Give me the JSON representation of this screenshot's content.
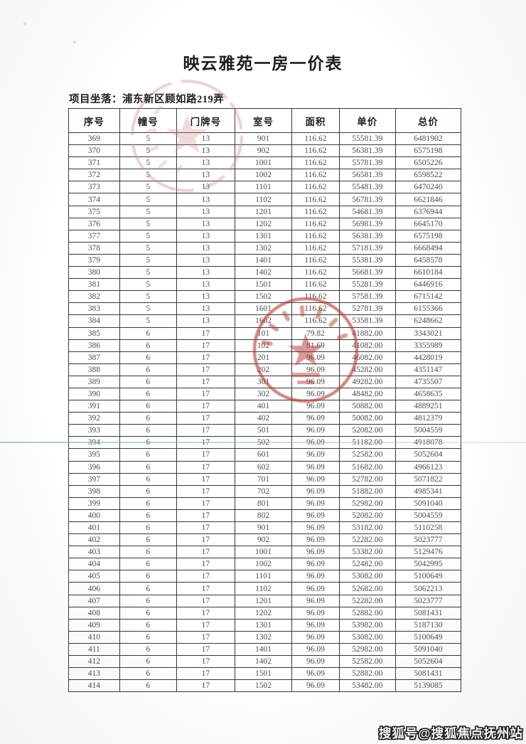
{
  "page": {
    "title": "映云雅苑一房一价表",
    "location_label": "项目坐落：",
    "location_value": "浦东新区顾如路219弄"
  },
  "table": {
    "headers": [
      "序号",
      "幢号",
      "门牌号",
      "室号",
      "面积",
      "单价",
      "总价"
    ],
    "rows": [
      [
        "369",
        "5",
        "13",
        "901",
        "116.62",
        "55581.39",
        "6481902"
      ],
      [
        "370",
        "5",
        "13",
        "902",
        "116.62",
        "56381.39",
        "6575198"
      ],
      [
        "371",
        "5",
        "13",
        "1001",
        "116.62",
        "55781.39",
        "6505226"
      ],
      [
        "372",
        "5",
        "13",
        "1002",
        "116.62",
        "56581.39",
        "6598522"
      ],
      [
        "373",
        "5",
        "13",
        "1101",
        "116.62",
        "55481.39",
        "6470240"
      ],
      [
        "374",
        "5",
        "13",
        "1102",
        "116.62",
        "56781.39",
        "6621846"
      ],
      [
        "375",
        "5",
        "13",
        "1201",
        "116.62",
        "54681.39",
        "6376944"
      ],
      [
        "376",
        "5",
        "13",
        "1202",
        "116.62",
        "56981.39",
        "6645170"
      ],
      [
        "377",
        "5",
        "13",
        "1301",
        "116.62",
        "56381.39",
        "6575198"
      ],
      [
        "378",
        "5",
        "13",
        "1302",
        "116.62",
        "57181.39",
        "6668494"
      ],
      [
        "379",
        "5",
        "13",
        "1401",
        "116.62",
        "55381.39",
        "6458578"
      ],
      [
        "380",
        "5",
        "13",
        "1402",
        "116.62",
        "56681.39",
        "6610184"
      ],
      [
        "381",
        "5",
        "13",
        "1501",
        "116.62",
        "55281.39",
        "6446916"
      ],
      [
        "382",
        "5",
        "13",
        "1502",
        "116.62",
        "57581.39",
        "6715142"
      ],
      [
        "383",
        "5",
        "13",
        "1601",
        "116.62",
        "52781.39",
        "6155366"
      ],
      [
        "384",
        "5",
        "13",
        "1602",
        "116.62",
        "53581.39",
        "6248662"
      ],
      [
        "385",
        "6",
        "17",
        "101",
        "79.82",
        "41882.00",
        "3343021"
      ],
      [
        "386",
        "6",
        "17",
        "102",
        "81.69",
        "41082.00",
        "3355989"
      ],
      [
        "387",
        "6",
        "17",
        "201",
        "96.09",
        "46082.00",
        "4428019"
      ],
      [
        "388",
        "6",
        "17",
        "202",
        "96.09",
        "45282.00",
        "4351147"
      ],
      [
        "389",
        "6",
        "17",
        "301",
        "96.09",
        "49282.00",
        "4735507"
      ],
      [
        "390",
        "6",
        "17",
        "302",
        "96.09",
        "48482.00",
        "4658635"
      ],
      [
        "391",
        "6",
        "17",
        "401",
        "96.09",
        "50882.00",
        "4889251"
      ],
      [
        "392",
        "6",
        "17",
        "402",
        "96.09",
        "50082.00",
        "4812379"
      ],
      [
        "393",
        "6",
        "17",
        "501",
        "96.09",
        "52082.00",
        "5004559"
      ],
      [
        "394",
        "6",
        "17",
        "502",
        "96.09",
        "51182.00",
        "4918078"
      ],
      [
        "395",
        "6",
        "17",
        "601",
        "96.09",
        "52582.00",
        "5052604"
      ],
      [
        "396",
        "6",
        "17",
        "602",
        "96.09",
        "51682.00",
        "4966123"
      ],
      [
        "397",
        "6",
        "17",
        "701",
        "96.09",
        "52782.00",
        "5071822"
      ],
      [
        "398",
        "6",
        "17",
        "702",
        "96.09",
        "51882.00",
        "4985341"
      ],
      [
        "399",
        "6",
        "17",
        "801",
        "96.09",
        "52982.00",
        "5091040"
      ],
      [
        "400",
        "6",
        "17",
        "802",
        "96.09",
        "52082.00",
        "5004559"
      ],
      [
        "401",
        "6",
        "17",
        "901",
        "96.09",
        "53182.00",
        "5110258"
      ],
      [
        "402",
        "6",
        "17",
        "902",
        "96.09",
        "52282.00",
        "5023777"
      ],
      [
        "403",
        "6",
        "17",
        "1001",
        "96.09",
        "53382.00",
        "5129476"
      ],
      [
        "404",
        "6",
        "17",
        "1002",
        "96.09",
        "52482.00",
        "5042995"
      ],
      [
        "405",
        "6",
        "17",
        "1101",
        "96.09",
        "53082.00",
        "5100649"
      ],
      [
        "406",
        "6",
        "17",
        "1102",
        "96.09",
        "52682.00",
        "5062213"
      ],
      [
        "407",
        "6",
        "17",
        "1201",
        "96.09",
        "52282.00",
        "5023777"
      ],
      [
        "408",
        "6",
        "17",
        "1202",
        "96.09",
        "52882.00",
        "5081431"
      ],
      [
        "409",
        "6",
        "17",
        "1301",
        "96.09",
        "53982.00",
        "5187130"
      ],
      [
        "410",
        "6",
        "17",
        "1302",
        "96.09",
        "53082.00",
        "5100649"
      ],
      [
        "411",
        "6",
        "17",
        "1401",
        "96.09",
        "52982.00",
        "5091040"
      ],
      [
        "412",
        "6",
        "17",
        "1402",
        "96.09",
        "52582.00",
        "5052604"
      ],
      [
        "413",
        "6",
        "17",
        "1501",
        "96.09",
        "52882.00",
        "5081431"
      ],
      [
        "414",
        "6",
        "17",
        "1502",
        "96.09",
        "53482.00",
        "5139085"
      ]
    ]
  },
  "watermark": {
    "text": "搜狐号@搜狐焦点抚州站"
  },
  "icons": {
    "top_seal": "red-official-seal-partial",
    "middle_seal": "red-official-seal-star"
  },
  "colors": {
    "seal_red_light": "#cf8d91",
    "seal_red": "#b23a31",
    "divider_teal": "#8bbab2",
    "table_border": "#383838"
  }
}
